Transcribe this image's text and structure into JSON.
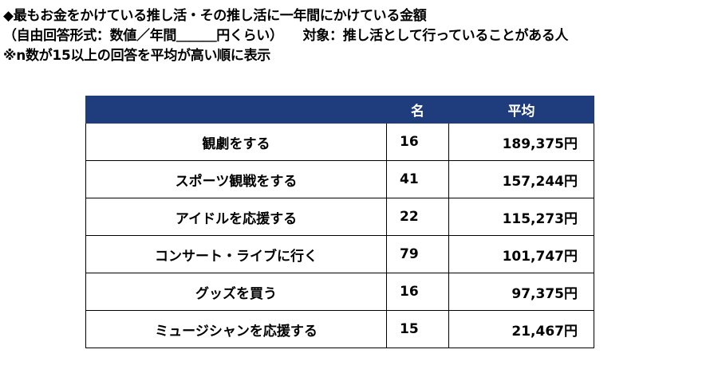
{
  "header": {
    "line1": "◆最もお金をかけている推し活・その推し活に一年間にかけている金額",
    "line2": "（自由回答形式：数値／年間＿＿＿円くらい）　　対象：推し活として行っていることがある人",
    "line3": "※n数が15以上の回答を平均が高い順に表示"
  },
  "table": {
    "columns": [
      "",
      "名",
      "平均"
    ],
    "rows": [
      {
        "label": "観劇をする",
        "n": "16",
        "average": "189,375円"
      },
      {
        "label": "スポーツ観戦をする",
        "n": "41",
        "average": "157,244円"
      },
      {
        "label": "アイドルを応援する",
        "n": "22",
        "average": "115,273円"
      },
      {
        "label": "コンサート・ライブに行く",
        "n": "79",
        "average": "101,747円"
      },
      {
        "label": "グッズを買う",
        "n": "16",
        "average": "97,375円"
      },
      {
        "label": "ミュージシャンを応援する",
        "n": "15",
        "average": "21,467円"
      }
    ]
  },
  "colors": {
    "header_bg": "#1f3d7c",
    "header_text": "#ffffff"
  }
}
